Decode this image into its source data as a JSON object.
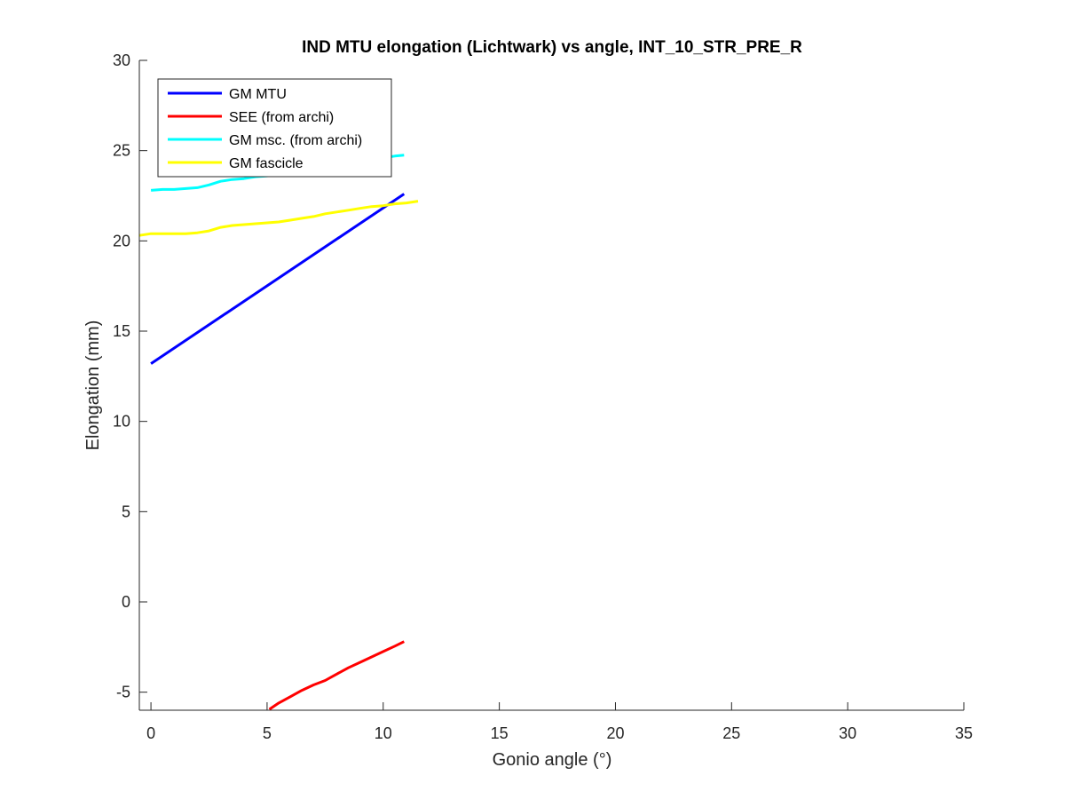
{
  "chart_data": {
    "type": "line",
    "title": "IND MTU elongation (Lichtwark) vs angle, INT_10_STR_PRE_R",
    "xlabel": "Gonio angle (°)",
    "ylabel": "Elongation (mm)",
    "xlim": [
      -0.5,
      35
    ],
    "ylim": [
      -6,
      30
    ],
    "xticks": [
      0,
      5,
      10,
      15,
      20,
      25,
      30,
      35
    ],
    "yticks": [
      -5,
      0,
      5,
      10,
      15,
      20,
      25,
      30
    ],
    "xtick_labels": [
      "0",
      "5",
      "10",
      "15",
      "20",
      "25",
      "30",
      "35"
    ],
    "ytick_labels": [
      "-5",
      "0",
      "5",
      "10",
      "15",
      "20",
      "25",
      "30"
    ],
    "grid": false,
    "legend_position": "top-left",
    "series": [
      {
        "name": "GM MTU",
        "color": "#0000ff",
        "points": [
          [
            0,
            13.2
          ],
          [
            10.9,
            22.6
          ]
        ]
      },
      {
        "name": "SEE (from archi)",
        "color": "#ff0000",
        "points": [
          [
            5.1,
            -5.95
          ],
          [
            5.5,
            -5.6
          ],
          [
            6.0,
            -5.25
          ],
          [
            6.5,
            -4.9
          ],
          [
            7.0,
            -4.6
          ],
          [
            7.5,
            -4.35
          ],
          [
            8.0,
            -4.0
          ],
          [
            8.5,
            -3.65
          ],
          [
            9.0,
            -3.35
          ],
          [
            9.5,
            -3.05
          ],
          [
            10.0,
            -2.75
          ],
          [
            10.5,
            -2.45
          ],
          [
            10.9,
            -2.2
          ]
        ]
      },
      {
        "name": "GM msc. (from archi)",
        "color": "#00ffff",
        "points": [
          [
            0,
            22.8
          ],
          [
            0.5,
            22.85
          ],
          [
            1.0,
            22.85
          ],
          [
            1.5,
            22.9
          ],
          [
            2.0,
            22.95
          ],
          [
            2.5,
            23.1
          ],
          [
            3.0,
            23.3
          ],
          [
            3.5,
            23.4
          ],
          [
            4.0,
            23.45
          ],
          [
            4.5,
            23.55
          ],
          [
            5.0,
            23.6
          ],
          [
            5.5,
            23.7
          ],
          [
            6.0,
            23.8
          ],
          [
            6.5,
            23.9
          ],
          [
            7.0,
            24.0
          ],
          [
            7.5,
            24.1
          ],
          [
            8.0,
            24.2
          ],
          [
            8.5,
            24.3
          ],
          [
            9.0,
            24.4
          ],
          [
            9.5,
            24.5
          ],
          [
            10.0,
            24.6
          ],
          [
            10.5,
            24.7
          ],
          [
            10.9,
            24.75
          ]
        ]
      },
      {
        "name": "GM fascicle",
        "color": "#ffff00",
        "points": [
          [
            -0.5,
            20.3
          ],
          [
            0,
            20.4
          ],
          [
            0.5,
            20.4
          ],
          [
            1.0,
            20.4
          ],
          [
            1.5,
            20.4
          ],
          [
            2.0,
            20.45
          ],
          [
            2.5,
            20.55
          ],
          [
            3.0,
            20.75
          ],
          [
            3.5,
            20.85
          ],
          [
            4.0,
            20.9
          ],
          [
            4.5,
            20.95
          ],
          [
            5.0,
            21.0
          ],
          [
            5.5,
            21.05
          ],
          [
            6.0,
            21.15
          ],
          [
            6.5,
            21.25
          ],
          [
            7.0,
            21.35
          ],
          [
            7.5,
            21.5
          ],
          [
            8.0,
            21.6
          ],
          [
            8.5,
            21.7
          ],
          [
            9.0,
            21.8
          ],
          [
            9.5,
            21.9
          ],
          [
            10.0,
            21.95
          ],
          [
            10.5,
            22.05
          ],
          [
            11.0,
            22.1
          ],
          [
            11.5,
            22.2
          ]
        ]
      }
    ]
  }
}
